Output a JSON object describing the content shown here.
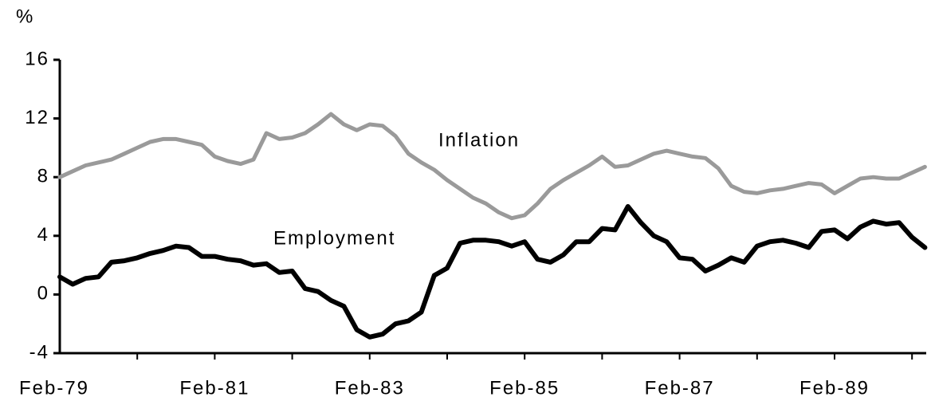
{
  "chart_data": {
    "type": "line",
    "y_label": "%",
    "categories": [
      "Feb-79",
      null,
      null,
      null,
      null,
      null,
      null,
      null,
      null,
      null,
      null,
      null,
      "Feb-81",
      null,
      null,
      null,
      null,
      null,
      null,
      null,
      null,
      null,
      null,
      null,
      "Feb-83",
      null,
      null,
      null,
      null,
      null,
      null,
      null,
      null,
      null,
      null,
      null,
      "Feb-85",
      null,
      null,
      null,
      null,
      null,
      null,
      null,
      null,
      null,
      null,
      null,
      "Feb-87",
      null,
      null,
      null,
      null,
      null,
      null,
      null,
      null,
      null,
      null,
      null,
      "Feb-89",
      null,
      null,
      null,
      null,
      null,
      null,
      null
    ],
    "series": [
      {
        "name": "Inflation",
        "color": "#9a9a9a",
        "values": [
          8.0,
          8.4,
          8.8,
          9.0,
          9.2,
          9.6,
          10.0,
          10.4,
          10.6,
          10.6,
          10.4,
          10.2,
          9.4,
          9.1,
          8.9,
          9.2,
          11.0,
          10.6,
          10.7,
          11.0,
          11.6,
          12.3,
          11.6,
          11.2,
          11.6,
          11.5,
          10.8,
          9.6,
          9.0,
          8.5,
          7.8,
          7.2,
          6.6,
          6.2,
          5.6,
          5.2,
          5.4,
          6.2,
          7.2,
          7.8,
          8.3,
          8.8,
          9.4,
          8.7,
          8.8,
          9.2,
          9.6,
          9.8,
          9.6,
          9.4,
          9.3,
          8.6,
          7.4,
          7.0,
          6.9,
          7.1,
          7.2,
          7.4,
          7.6,
          7.5,
          6.9,
          7.4,
          7.9,
          8.0,
          7.9,
          7.9,
          8.3,
          8.7
        ]
      },
      {
        "name": "Employment",
        "color": "#000000",
        "values": [
          1.2,
          0.7,
          1.1,
          1.2,
          2.2,
          2.3,
          2.5,
          2.8,
          3.0,
          3.3,
          3.2,
          2.6,
          2.6,
          2.4,
          2.3,
          2.0,
          2.1,
          1.5,
          1.6,
          0.4,
          0.2,
          -0.4,
          -0.8,
          -2.4,
          -2.9,
          -2.7,
          -2.0,
          -1.8,
          -1.2,
          1.3,
          1.8,
          3.5,
          3.7,
          3.7,
          3.6,
          3.3,
          3.6,
          2.4,
          2.2,
          2.7,
          3.6,
          3.6,
          4.5,
          4.4,
          6.0,
          4.9,
          4.0,
          3.6,
          2.5,
          2.4,
          1.6,
          2.0,
          2.5,
          2.2,
          3.3,
          3.6,
          3.7,
          3.5,
          3.2,
          4.3,
          4.4,
          3.8,
          4.6,
          5.0,
          4.8,
          4.9,
          3.9,
          3.2
        ]
      }
    ],
    "ylim": [
      -4,
      16
    ],
    "yticks": [
      -4,
      0,
      4,
      8,
      12,
      16
    ],
    "annotations": [
      "Inflation",
      "Employment"
    ]
  }
}
